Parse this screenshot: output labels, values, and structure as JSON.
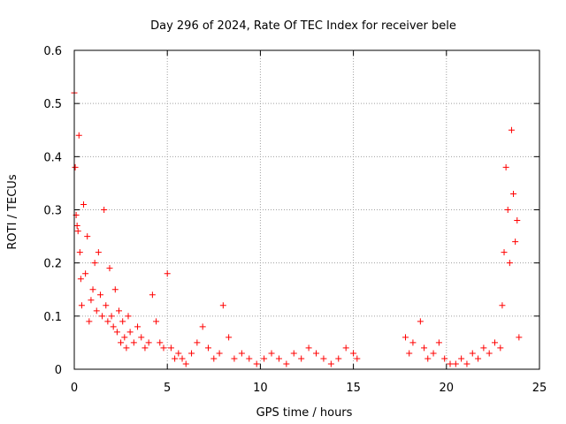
{
  "chart_data": {
    "type": "scatter",
    "title": "Day 296 of 2024, Rate Of TEC Index for receiver bele",
    "xlabel": "GPS time / hours",
    "ylabel": "ROTI / TECUs",
    "xlim": [
      0,
      25
    ],
    "ylim": [
      0,
      0.6
    ],
    "xticks": [
      0,
      5,
      10,
      15,
      20,
      25
    ],
    "xtick_labels": [
      "0",
      "5",
      "10",
      "15",
      "20",
      "25"
    ],
    "yticks": [
      0,
      0.1,
      0.2,
      0.3,
      0.4,
      0.5,
      0.6
    ],
    "ytick_labels": [
      "0",
      "0.1",
      "0.2",
      "0.3",
      "0.4",
      "0.5",
      "0.6"
    ],
    "grid": true,
    "marker": "+",
    "colors": {
      "points": "#ff0000",
      "grid": "#a0a0a0",
      "axes": "#000000"
    },
    "series": [
      {
        "x": [
          0.0,
          0.05,
          0.1,
          0.15,
          0.2,
          0.25,
          0.3,
          0.35,
          0.4,
          0.5,
          0.6,
          0.7,
          0.8,
          0.9,
          1.0,
          1.1,
          1.2,
          1.3,
          1.4,
          1.5,
          1.6,
          1.7,
          1.8,
          1.9,
          2.0,
          2.1,
          2.2,
          2.3,
          2.4,
          2.5,
          2.6,
          2.7,
          2.8,
          2.9,
          3.0,
          3.2,
          3.4,
          3.6,
          3.8,
          4.0,
          4.2,
          4.4,
          4.6,
          4.8,
          5.0,
          5.2,
          5.4,
          5.6,
          5.8,
          6.0,
          6.3,
          6.6,
          6.9,
          7.2,
          7.5,
          7.8,
          8.0,
          8.3,
          8.6,
          9.0,
          9.4,
          9.8,
          10.2,
          10.6,
          11.0,
          11.4,
          11.8,
          12.2,
          12.6,
          13.0,
          13.4,
          13.8,
          14.2,
          14.6,
          15.0,
          15.2,
          17.8,
          18.0,
          18.2,
          18.6,
          18.8,
          19.0,
          19.3,
          19.6,
          19.9,
          20.2,
          20.5,
          20.8,
          21.1,
          21.4,
          21.7,
          22.0,
          22.3,
          22.6,
          22.9,
          23.0,
          23.1,
          23.2,
          23.3,
          23.4,
          23.5,
          23.6,
          23.7,
          23.8,
          23.9
        ],
        "y": [
          0.52,
          0.38,
          0.29,
          0.27,
          0.26,
          0.44,
          0.22,
          0.17,
          0.12,
          0.31,
          0.18,
          0.25,
          0.09,
          0.13,
          0.15,
          0.2,
          0.11,
          0.22,
          0.14,
          0.1,
          0.3,
          0.12,
          0.09,
          0.19,
          0.1,
          0.08,
          0.15,
          0.07,
          0.11,
          0.05,
          0.09,
          0.06,
          0.04,
          0.1,
          0.07,
          0.05,
          0.08,
          0.06,
          0.04,
          0.05,
          0.14,
          0.09,
          0.05,
          0.04,
          0.18,
          0.04,
          0.02,
          0.03,
          0.02,
          0.01,
          0.03,
          0.05,
          0.08,
          0.04,
          0.02,
          0.03,
          0.12,
          0.06,
          0.02,
          0.03,
          0.02,
          0.01,
          0.02,
          0.03,
          0.02,
          0.01,
          0.03,
          0.02,
          0.04,
          0.03,
          0.02,
          0.01,
          0.02,
          0.04,
          0.03,
          0.02,
          0.06,
          0.03,
          0.05,
          0.09,
          0.04,
          0.02,
          0.03,
          0.05,
          0.02,
          0.01,
          0.01,
          0.02,
          0.01,
          0.03,
          0.02,
          0.04,
          0.03,
          0.05,
          0.04,
          0.12,
          0.22,
          0.38,
          0.3,
          0.2,
          0.45,
          0.33,
          0.24,
          0.28,
          0.06
        ]
      }
    ]
  }
}
